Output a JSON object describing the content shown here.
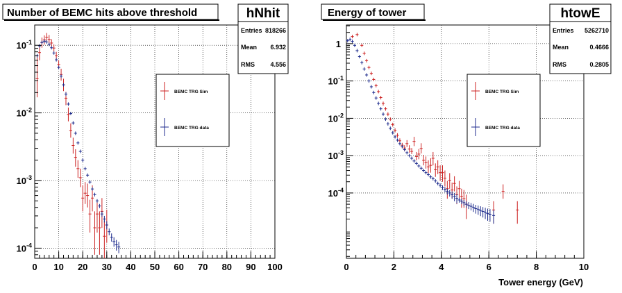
{
  "chart_data": [
    {
      "type": "scatter",
      "title": "Number of BEMC hits above threshold",
      "stats": {
        "name": "hNhit",
        "rows": [
          {
            "label": "Entries",
            "value": "818266"
          },
          {
            "label": "Mean",
            "value": "6.932"
          },
          {
            "label": "RMS",
            "value": "4.556"
          }
        ]
      },
      "xlabel": "",
      "ylabel": "",
      "xlim": [
        0,
        100
      ],
      "ylog": true,
      "ylim_log10": [
        -4.15,
        -0.7
      ],
      "xticks": [
        0,
        10,
        20,
        30,
        40,
        50,
        60,
        70,
        80,
        90,
        100
      ],
      "yticks": [
        {
          "label": "10",
          "exp": "-1",
          "log": -1
        },
        {
          "label": "10",
          "exp": "-2",
          "log": -2
        },
        {
          "label": "10",
          "exp": "-3",
          "log": -3
        },
        {
          "label": "10",
          "exp": "-4",
          "log": -4
        }
      ],
      "grid": true,
      "legend_position": "upper-right",
      "series": [
        {
          "name": "BEMC TRG Sim",
          "color": "#cc2222",
          "x": [
            1,
            2,
            3,
            4,
            5,
            6,
            7,
            8,
            9,
            10,
            11,
            12,
            13,
            14,
            15,
            16,
            17,
            18,
            19,
            20,
            21,
            22,
            23,
            24,
            25,
            26,
            27,
            28,
            29,
            30
          ],
          "y": [
            0.032,
            0.078,
            0.11,
            0.12,
            0.132,
            0.122,
            0.108,
            0.091,
            0.07,
            0.052,
            0.037,
            0.026,
            0.0165,
            0.0095,
            0.0055,
            0.0033,
            0.0022,
            0.0015,
            0.0011,
            0.00055,
            0.00065,
            0.0006,
            0.00032,
            0.00055,
            0.0002,
            0.00032,
            0.0002,
            0.00035,
            0.00015,
            0.00022
          ],
          "err_up": [
            0.04,
            0.02,
            0.02,
            0.02,
            0.02,
            0.02,
            0.015,
            0.012,
            0.01,
            0.008,
            0.008,
            0.006,
            0.004,
            0.0025,
            0.0015,
            0.001,
            0.0007,
            0.0005,
            0.0004,
            0.0003,
            0.0003,
            0.0003,
            0.0002,
            0.0003,
            0.00015,
            0.0002,
            0.00015,
            0.0002,
            0.0001,
            0.00015
          ],
          "err_dn": [
            0.015,
            0.018,
            0.018,
            0.018,
            0.018,
            0.018,
            0.013,
            0.01,
            0.009,
            0.007,
            0.007,
            0.005,
            0.0035,
            0.002,
            0.0012,
            0.0008,
            0.0006,
            0.0004,
            0.0003,
            0.0002,
            0.0002,
            0.0002,
            0.00015,
            0.0002,
            0.00012,
            0.00015,
            0.00012,
            0.00015,
            8e-05,
            0.0001
          ]
        },
        {
          "name": "BEMC TRG data",
          "color": "#1c2a8c",
          "x": [
            1,
            2,
            3,
            4,
            5,
            6,
            7,
            8,
            9,
            10,
            11,
            12,
            13,
            14,
            15,
            16,
            17,
            18,
            19,
            20,
            21,
            22,
            23,
            24,
            25,
            26,
            27,
            28,
            29,
            30,
            31,
            32,
            33,
            34,
            35
          ],
          "y": [
            0.07,
            0.098,
            0.11,
            0.115,
            0.112,
            0.103,
            0.092,
            0.077,
            0.061,
            0.047,
            0.035,
            0.026,
            0.019,
            0.0135,
            0.0098,
            0.0071,
            0.005,
            0.0036,
            0.0027,
            0.002,
            0.0015,
            0.0012,
            0.00095,
            0.00075,
            0.00062,
            0.0005,
            0.00042,
            0.00032,
            0.00027,
            0.00022,
            0.000175,
            0.000145,
            0.000125,
            0.000112,
            0.000104
          ],
          "err_up": [
            0.003,
            0.003,
            0.003,
            0.003,
            0.003,
            0.003,
            0.002,
            0.002,
            0.002,
            0.001,
            0.001,
            0.0008,
            0.0005,
            0.0004,
            0.0003,
            0.0002,
            0.00015,
            0.0001,
            0.0001,
            8e-05,
            7e-05,
            6e-05,
            5e-05,
            4e-05,
            4e-05,
            3e-05,
            3e-05,
            3e-05,
            3e-05,
            3e-05,
            2e-05,
            2e-05,
            2e-05,
            2e-05,
            2e-05
          ],
          "err_dn": [
            0.003,
            0.003,
            0.003,
            0.003,
            0.003,
            0.003,
            0.002,
            0.002,
            0.002,
            0.001,
            0.001,
            0.0008,
            0.0005,
            0.0004,
            0.0003,
            0.0002,
            0.00015,
            0.0001,
            0.0001,
            8e-05,
            7e-05,
            6e-05,
            5e-05,
            4e-05,
            4e-05,
            3e-05,
            3e-05,
            3e-05,
            3e-05,
            3e-05,
            2e-05,
            2e-05,
            2e-05,
            2e-05,
            2e-05
          ]
        }
      ]
    },
    {
      "type": "scatter",
      "title": "Energy of tower",
      "stats": {
        "name": "htowE",
        "rows": [
          {
            "label": "Entries",
            "value": "5262710"
          },
          {
            "label": "Mean",
            "value": "0.4666"
          },
          {
            "label": "RMS",
            "value": "0.2805"
          }
        ]
      },
      "xlabel": "Tower energy (GeV)",
      "ylabel": "",
      "xlim": [
        0,
        10
      ],
      "ylog": true,
      "ylim_log10": [
        -5.75,
        0.5
      ],
      "xticks": [
        0,
        2,
        4,
        6,
        8,
        10
      ],
      "yticks": [
        {
          "label": "1",
          "exp": "",
          "log": 0
        },
        {
          "label": "10",
          "exp": "-1",
          "log": -1
        },
        {
          "label": "10",
          "exp": "-2",
          "log": -2
        },
        {
          "label": "10",
          "exp": "-3",
          "log": -3
        },
        {
          "label": "10",
          "exp": "-4",
          "log": -4
        }
      ],
      "grid": true,
      "legend_position": "upper-right",
      "series": [
        {
          "name": "BEMC TRG Sim",
          "color": "#cc2222",
          "x": [
            0.25,
            0.45,
            0.65,
            0.75,
            0.85,
            0.95,
            1.05,
            1.15,
            1.25,
            1.35,
            1.45,
            1.55,
            1.65,
            1.75,
            1.85,
            1.95,
            2.05,
            2.15,
            2.25,
            2.35,
            2.45,
            2.55,
            2.65,
            2.75,
            2.85,
            2.95,
            3.05,
            3.15,
            3.25,
            3.35,
            3.45,
            3.55,
            3.65,
            3.75,
            3.85,
            3.95,
            4.05,
            4.15,
            4.25,
            4.35,
            4.45,
            4.55,
            4.65,
            4.75,
            4.85,
            4.95,
            5.05,
            6.2,
            6.6,
            7.2
          ],
          "y": [
            1.55,
            1.75,
            0.9,
            0.55,
            0.35,
            0.23,
            0.16,
            0.11,
            0.075,
            0.052,
            0.036,
            0.025,
            0.018,
            0.013,
            0.0095,
            0.0068,
            0.0048,
            0.0035,
            0.0025,
            0.0019,
            0.0016,
            0.0021,
            0.0015,
            0.0013,
            0.0024,
            0.00095,
            0.0011,
            0.00155,
            0.00075,
            0.00065,
            0.0005,
            0.00055,
            0.00085,
            0.00042,
            0.0005,
            0.00035,
            0.00035,
            0.00025,
            0.00013,
            0.00022,
            0.00012,
            0.00018,
            9e-05,
            0.00013,
            8e-05,
            7e-05,
            5e-05,
            3.5e-05,
            0.00011,
            3.5e-05
          ],
          "err_up": [
            0.1,
            0.1,
            0.05,
            0.04,
            0.03,
            0.02,
            0.015,
            0.01,
            0.007,
            0.005,
            0.004,
            0.003,
            0.002,
            0.0015,
            0.001,
            0.0008,
            0.0006,
            0.0005,
            0.0004,
            0.0003,
            0.0003,
            0.0005,
            0.0004,
            0.0003,
            0.0008,
            0.0003,
            0.0004,
            0.0006,
            0.0003,
            0.0003,
            0.00025,
            0.0003,
            0.0004,
            0.0002,
            0.00025,
            0.0002,
            0.0002,
            0.00015,
            8e-05,
            0.00012,
            7e-05,
            0.0001,
            6e-05,
            8e-05,
            5e-05,
            5e-05,
            4e-05,
            2.5e-05,
            6e-05,
            2.5e-05
          ],
          "err_dn": [
            0.1,
            0.1,
            0.05,
            0.04,
            0.03,
            0.02,
            0.015,
            0.01,
            0.007,
            0.005,
            0.004,
            0.003,
            0.002,
            0.0015,
            0.001,
            0.0008,
            0.0006,
            0.0005,
            0.0004,
            0.0003,
            0.0003,
            0.0004,
            0.0003,
            0.0002,
            0.0006,
            0.0002,
            0.0003,
            0.0004,
            0.0002,
            0.0002,
            0.00018,
            0.0002,
            0.0003,
            0.00015,
            0.00018,
            0.00014,
            0.00015,
            0.0001,
            6e-05,
            9e-05,
            5e-05,
            7e-05,
            4e-05,
            6e-05,
            4e-05,
            3e-05,
            3e-05,
            2e-05,
            4e-05,
            2e-05
          ]
        },
        {
          "name": "BEMC TRG data",
          "color": "#1c2a8c",
          "x": [
            0.05,
            0.15,
            0.25,
            0.35,
            0.45,
            0.55,
            0.65,
            0.75,
            0.85,
            0.95,
            1.05,
            1.15,
            1.25,
            1.35,
            1.45,
            1.55,
            1.65,
            1.75,
            1.85,
            1.95,
            2.05,
            2.15,
            2.25,
            2.35,
            2.45,
            2.55,
            2.65,
            2.75,
            2.85,
            2.95,
            3.05,
            3.15,
            3.25,
            3.35,
            3.45,
            3.55,
            3.65,
            3.75,
            3.85,
            3.95,
            4.05,
            4.15,
            4.25,
            4.35,
            4.45,
            4.55,
            4.65,
            4.75,
            4.85,
            4.95,
            5.05,
            5.15,
            5.25,
            5.35,
            5.45,
            5.55,
            5.65,
            5.75,
            5.85,
            5.95,
            6.05,
            6.2
          ],
          "y": [
            1.2,
            1.3,
            1.15,
            0.9,
            0.65,
            0.45,
            0.31,
            0.21,
            0.145,
            0.1,
            0.07,
            0.049,
            0.035,
            0.025,
            0.018,
            0.013,
            0.0095,
            0.0071,
            0.0054,
            0.0041,
            0.0032,
            0.0026,
            0.0021,
            0.00175,
            0.00145,
            0.0012,
            0.001,
            0.00085,
            0.00072,
            0.00062,
            0.00053,
            0.00046,
            0.0004,
            0.00035,
            0.00031,
            0.00027,
            0.00024,
            0.00021,
            0.00018,
            0.00016,
            0.00014,
            0.000125,
            0.00011,
            0.0001,
            9e-05,
            8e-05,
            7.2e-05,
            6.5e-05,
            6e-05,
            5.5e-05,
            5e-05,
            4.7e-05,
            4.4e-05,
            4.1e-05,
            3.8e-05,
            3.6e-05,
            3.4e-05,
            3.2e-05,
            3e-05,
            2.8e-05,
            2.7e-05,
            2.5e-05
          ],
          "err_up": [
            0.02,
            0.02,
            0.02,
            0.02,
            0.015,
            0.01,
            0.008,
            0.005,
            0.004,
            0.003,
            0.002,
            0.0015,
            0.001,
            0.0008,
            0.0006,
            0.0005,
            0.0003,
            0.0003,
            0.0002,
            0.0002,
            0.00015,
            0.00012,
            0.0001,
            9e-05,
            8e-05,
            7e-05,
            6e-05,
            5e-05,
            5e-05,
            4e-05,
            4e-05,
            3e-05,
            3e-05,
            3e-05,
            3e-05,
            3e-05,
            2e-05,
            2e-05,
            2e-05,
            2e-05,
            2e-05,
            2e-05,
            2e-05,
            2e-05,
            2e-05,
            2e-05,
            2e-05,
            1e-05,
            1e-05,
            1e-05,
            1e-05,
            1e-05,
            1e-05,
            1e-05,
            1e-05,
            1e-05,
            1e-05,
            1e-05,
            1e-05,
            1e-05,
            1e-05,
            1e-05
          ],
          "err_dn": [
            0.02,
            0.02,
            0.02,
            0.02,
            0.015,
            0.01,
            0.008,
            0.005,
            0.004,
            0.003,
            0.002,
            0.0015,
            0.001,
            0.0008,
            0.0006,
            0.0005,
            0.0003,
            0.0003,
            0.0002,
            0.0002,
            0.00015,
            0.00012,
            0.0001,
            9e-05,
            8e-05,
            7e-05,
            6e-05,
            5e-05,
            5e-05,
            4e-05,
            4e-05,
            3e-05,
            3e-05,
            3e-05,
            3e-05,
            3e-05,
            2e-05,
            2e-05,
            2e-05,
            2e-05,
            2e-05,
            2e-05,
            2e-05,
            2e-05,
            2e-05,
            2e-05,
            2e-05,
            1e-05,
            1e-05,
            1e-05,
            1e-05,
            1e-05,
            1e-05,
            1e-05,
            1e-05,
            1e-05,
            1e-05,
            1e-05,
            1e-05,
            1e-05,
            1e-05,
            1e-05
          ]
        }
      ]
    }
  ]
}
